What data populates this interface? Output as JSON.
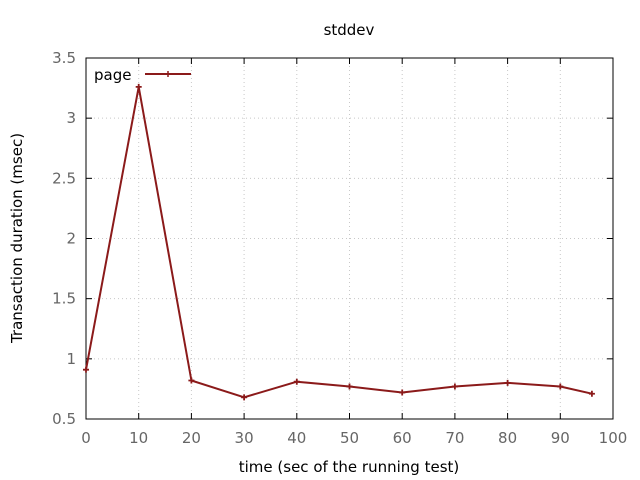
{
  "chart_data": {
    "type": "line",
    "title": "stddev",
    "xlabel": "time (sec of the running test)",
    "ylabel": "Transaction duration (msec)",
    "xlim": [
      0,
      100
    ],
    "ylim": [
      0.5,
      3.5
    ],
    "x_ticks": [
      "0",
      "10",
      "20",
      "30",
      "40",
      "50",
      "60",
      "70",
      "80",
      "90",
      "100"
    ],
    "y_ticks": [
      "0.5",
      "1",
      "1.5",
      "2",
      "2.5",
      "3",
      "3.5"
    ],
    "grid": true,
    "legend_position": "top-left",
    "series": [
      {
        "name": "page",
        "color": "#8b1a1a",
        "x": [
          0,
          10,
          20,
          30,
          40,
          50,
          60,
          70,
          80,
          90,
          96
        ],
        "values": [
          0.91,
          3.26,
          0.82,
          0.68,
          0.81,
          0.77,
          0.72,
          0.77,
          0.8,
          0.77,
          0.71
        ]
      }
    ]
  }
}
